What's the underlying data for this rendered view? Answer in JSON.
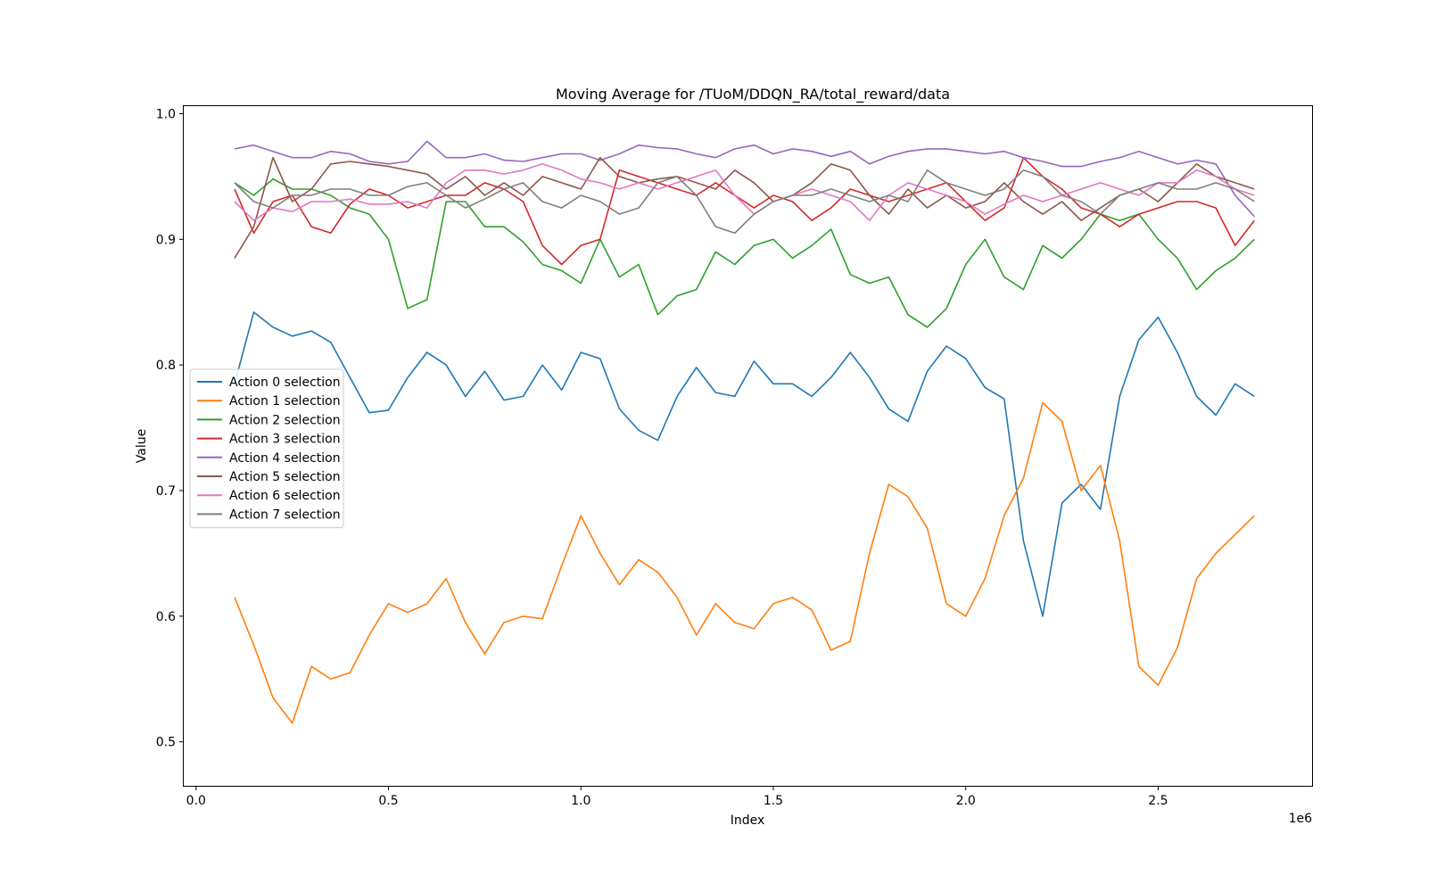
{
  "chart_data": {
    "type": "line",
    "title": "Moving Average for /TUoM/DDQN_RA/total_reward/data",
    "xlabel": "Index",
    "ylabel": "Value",
    "x_offset_label": "1e6",
    "xlim": [
      -0.032,
      2.9
    ],
    "ylim": [
      0.465,
      1.006
    ],
    "x_ticks": [
      0.0,
      0.5,
      1.0,
      1.5,
      2.0,
      2.5
    ],
    "x_tick_labels": [
      "0.0",
      "0.5",
      "1.0",
      "1.5",
      "2.0",
      "2.5"
    ],
    "y_ticks": [
      0.5,
      0.6,
      0.7,
      0.8,
      0.9,
      1.0
    ],
    "y_tick_labels": [
      "0.5",
      "0.6",
      "0.7",
      "0.8",
      "0.9",
      "1.0"
    ],
    "grid": false,
    "legend_position": "center-left",
    "x": [
      0.1,
      0.15,
      0.2,
      0.25,
      0.3,
      0.35,
      0.4,
      0.45,
      0.5,
      0.55,
      0.6,
      0.65,
      0.7,
      0.75,
      0.8,
      0.85,
      0.9,
      0.95,
      1.0,
      1.05,
      1.1,
      1.15,
      1.2,
      1.25,
      1.3,
      1.35,
      1.4,
      1.45,
      1.5,
      1.55,
      1.6,
      1.65,
      1.7,
      1.75,
      1.8,
      1.85,
      1.9,
      1.95,
      2.0,
      2.05,
      2.1,
      2.15,
      2.2,
      2.25,
      2.3,
      2.35,
      2.4,
      2.45,
      2.5,
      2.55,
      2.6,
      2.65,
      2.7,
      2.75
    ],
    "series": [
      {
        "name": "Action 0 selection",
        "color": "#1f77b4",
        "values": [
          0.785,
          0.842,
          0.83,
          0.823,
          0.827,
          0.818,
          0.79,
          0.762,
          0.764,
          0.79,
          0.81,
          0.8,
          0.775,
          0.795,
          0.772,
          0.775,
          0.8,
          0.78,
          0.81,
          0.805,
          0.765,
          0.748,
          0.74,
          0.775,
          0.798,
          0.778,
          0.775,
          0.803,
          0.785,
          0.785,
          0.775,
          0.79,
          0.81,
          0.79,
          0.765,
          0.755,
          0.795,
          0.815,
          0.805,
          0.782,
          0.773,
          0.66,
          0.6,
          0.69,
          0.705,
          0.685,
          0.775,
          0.82,
          0.838,
          0.81,
          0.775,
          0.76,
          0.785,
          0.775
        ]
      },
      {
        "name": "Action 1 selection",
        "color": "#ff7f0e",
        "values": [
          0.615,
          0.577,
          0.535,
          0.515,
          0.56,
          0.55,
          0.555,
          0.585,
          0.61,
          0.603,
          0.61,
          0.63,
          0.595,
          0.57,
          0.595,
          0.6,
          0.598,
          0.64,
          0.68,
          0.65,
          0.625,
          0.645,
          0.635,
          0.615,
          0.585,
          0.61,
          0.595,
          0.59,
          0.61,
          0.615,
          0.605,
          0.573,
          0.58,
          0.65,
          0.705,
          0.695,
          0.67,
          0.61,
          0.6,
          0.63,
          0.68,
          0.71,
          0.77,
          0.755,
          0.7,
          0.72,
          0.66,
          0.56,
          0.545,
          0.575,
          0.63,
          0.65,
          0.665,
          0.68
        ]
      },
      {
        "name": "Action 2 selection",
        "color": "#2ca02c",
        "values": [
          0.945,
          0.935,
          0.948,
          0.94,
          0.94,
          0.935,
          0.925,
          0.92,
          0.9,
          0.845,
          0.852,
          0.93,
          0.93,
          0.91,
          0.91,
          0.898,
          0.88,
          0.875,
          0.865,
          0.9,
          0.87,
          0.88,
          0.84,
          0.855,
          0.86,
          0.89,
          0.88,
          0.895,
          0.9,
          0.885,
          0.895,
          0.908,
          0.872,
          0.865,
          0.87,
          0.84,
          0.83,
          0.845,
          0.88,
          0.9,
          0.87,
          0.86,
          0.895,
          0.885,
          0.9,
          0.92,
          0.915,
          0.92,
          0.9,
          0.885,
          0.86,
          0.875,
          0.885,
          0.9
        ]
      },
      {
        "name": "Action 3 selection",
        "color": "#d62728",
        "values": [
          0.94,
          0.905,
          0.93,
          0.935,
          0.91,
          0.905,
          0.928,
          0.94,
          0.935,
          0.925,
          0.93,
          0.935,
          0.935,
          0.945,
          0.94,
          0.93,
          0.895,
          0.88,
          0.895,
          0.9,
          0.955,
          0.95,
          0.945,
          0.94,
          0.935,
          0.945,
          0.935,
          0.925,
          0.935,
          0.93,
          0.915,
          0.925,
          0.94,
          0.935,
          0.93,
          0.935,
          0.94,
          0.945,
          0.93,
          0.915,
          0.925,
          0.965,
          0.95,
          0.94,
          0.925,
          0.92,
          0.91,
          0.92,
          0.925,
          0.93,
          0.93,
          0.925,
          0.895,
          0.915
        ]
      },
      {
        "name": "Action 4 selection",
        "color": "#9467bd",
        "values": [
          0.972,
          0.975,
          0.97,
          0.965,
          0.965,
          0.97,
          0.968,
          0.962,
          0.96,
          0.962,
          0.978,
          0.965,
          0.965,
          0.968,
          0.963,
          0.962,
          0.965,
          0.968,
          0.968,
          0.963,
          0.968,
          0.975,
          0.973,
          0.972,
          0.968,
          0.965,
          0.972,
          0.975,
          0.968,
          0.972,
          0.97,
          0.966,
          0.97,
          0.96,
          0.966,
          0.97,
          0.972,
          0.972,
          0.97,
          0.968,
          0.97,
          0.965,
          0.962,
          0.958,
          0.958,
          0.962,
          0.965,
          0.97,
          0.965,
          0.96,
          0.963,
          0.96,
          0.935,
          0.918
        ]
      },
      {
        "name": "Action 5 selection",
        "color": "#8c564b",
        "values": [
          0.885,
          0.91,
          0.965,
          0.93,
          0.94,
          0.96,
          0.962,
          0.96,
          0.958,
          0.955,
          0.952,
          0.94,
          0.95,
          0.935,
          0.945,
          0.935,
          0.95,
          0.945,
          0.94,
          0.965,
          0.95,
          0.945,
          0.948,
          0.95,
          0.945,
          0.94,
          0.955,
          0.945,
          0.93,
          0.935,
          0.945,
          0.96,
          0.955,
          0.935,
          0.92,
          0.94,
          0.925,
          0.935,
          0.925,
          0.93,
          0.945,
          0.93,
          0.92,
          0.93,
          0.915,
          0.925,
          0.935,
          0.94,
          0.93,
          0.945,
          0.96,
          0.95,
          0.945,
          0.94
        ]
      },
      {
        "name": "Action 6 selection",
        "color": "#e377c2",
        "values": [
          0.93,
          0.915,
          0.925,
          0.922,
          0.93,
          0.93,
          0.932,
          0.928,
          0.928,
          0.93,
          0.925,
          0.945,
          0.955,
          0.955,
          0.952,
          0.955,
          0.96,
          0.955,
          0.948,
          0.945,
          0.94,
          0.945,
          0.94,
          0.945,
          0.95,
          0.955,
          0.935,
          0.92,
          0.93,
          0.935,
          0.94,
          0.935,
          0.93,
          0.915,
          0.935,
          0.945,
          0.94,
          0.935,
          0.93,
          0.92,
          0.928,
          0.935,
          0.93,
          0.935,
          0.94,
          0.945,
          0.94,
          0.935,
          0.945,
          0.945,
          0.955,
          0.95,
          0.94,
          0.935
        ]
      },
      {
        "name": "Action 7 selection",
        "color": "#7f7f7f",
        "values": [
          0.945,
          0.93,
          0.925,
          0.935,
          0.935,
          0.94,
          0.94,
          0.935,
          0.935,
          0.942,
          0.945,
          0.935,
          0.925,
          0.932,
          0.94,
          0.945,
          0.93,
          0.925,
          0.935,
          0.93,
          0.92,
          0.925,
          0.945,
          0.95,
          0.935,
          0.91,
          0.905,
          0.92,
          0.93,
          0.935,
          0.935,
          0.94,
          0.935,
          0.93,
          0.935,
          0.93,
          0.955,
          0.945,
          0.94,
          0.935,
          0.94,
          0.955,
          0.95,
          0.935,
          0.93,
          0.92,
          0.935,
          0.94,
          0.945,
          0.94,
          0.94,
          0.945,
          0.94,
          0.93
        ]
      }
    ]
  }
}
